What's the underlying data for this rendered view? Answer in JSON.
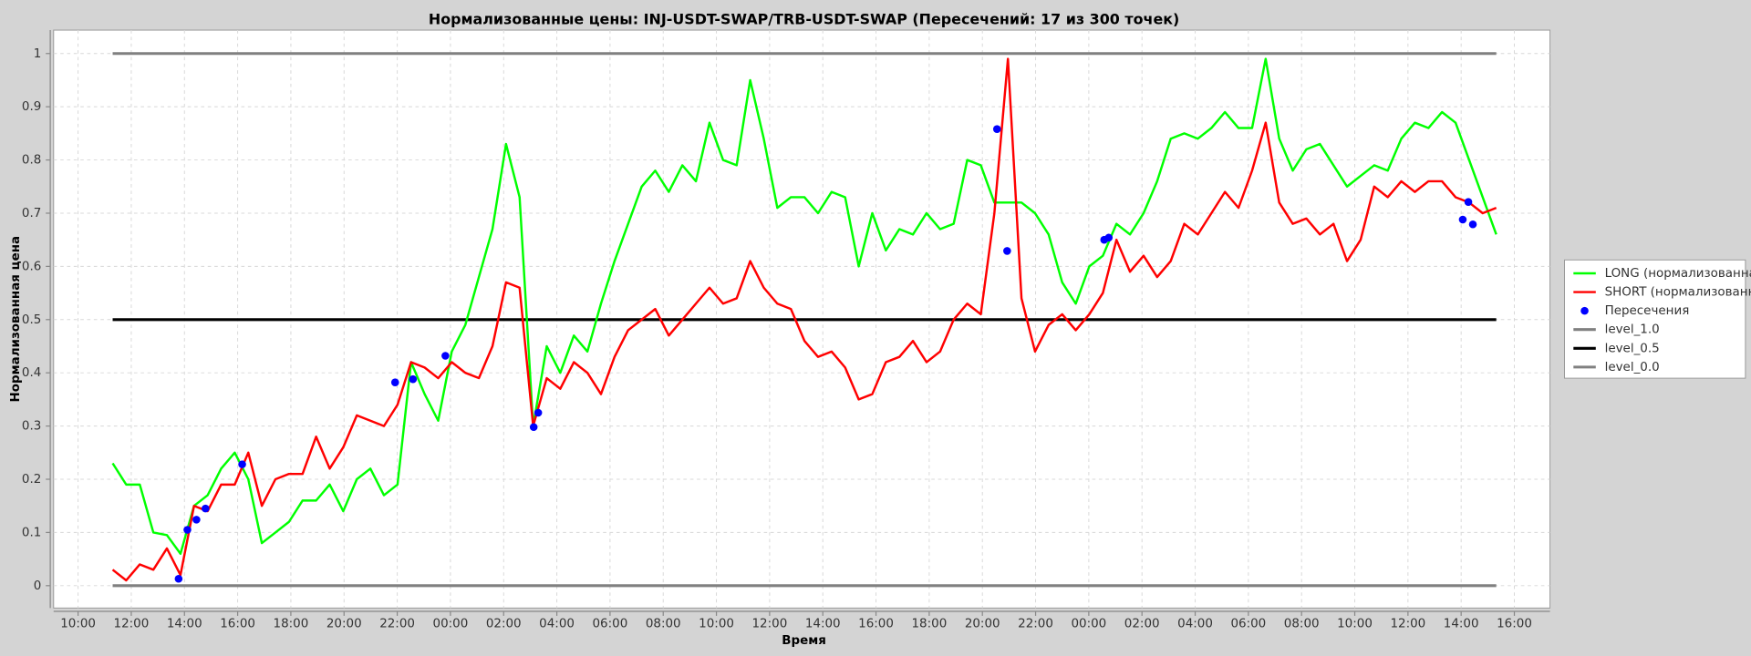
{
  "chart_data": {
    "type": "line",
    "title": "Нормализованные цены: INJ-USDT-SWAP/TRB-USDT-SWAP (Пересечений: 17 из 300 точек)",
    "xlabel": "Время",
    "ylabel": "Нормализованная цена",
    "grid": true,
    "legend": "right",
    "xlim": [
      9.08,
      65.34
    ],
    "ylim": [
      -0.042,
      1.044
    ],
    "xticks": [
      {
        "value": 10,
        "label": "10:00"
      },
      {
        "value": 12,
        "label": "12:00"
      },
      {
        "value": 14,
        "label": "14:00"
      },
      {
        "value": 16,
        "label": "16:00"
      },
      {
        "value": 18,
        "label": "18:00"
      },
      {
        "value": 20,
        "label": "20:00"
      },
      {
        "value": 22,
        "label": "22:00"
      },
      {
        "value": 24,
        "label": "00:00"
      },
      {
        "value": 26,
        "label": "02:00"
      },
      {
        "value": 28,
        "label": "04:00"
      },
      {
        "value": 30,
        "label": "06:00"
      },
      {
        "value": 32,
        "label": "08:00"
      },
      {
        "value": 34,
        "label": "10:00"
      },
      {
        "value": 36,
        "label": "12:00"
      },
      {
        "value": 38,
        "label": "14:00"
      },
      {
        "value": 40,
        "label": "16:00"
      },
      {
        "value": 42,
        "label": "18:00"
      },
      {
        "value": 44,
        "label": "20:00"
      },
      {
        "value": 46,
        "label": "22:00"
      },
      {
        "value": 48,
        "label": "00:00"
      },
      {
        "value": 50,
        "label": "02:00"
      },
      {
        "value": 52,
        "label": "04:00"
      },
      {
        "value": 54,
        "label": "06:00"
      },
      {
        "value": 56,
        "label": "08:00"
      },
      {
        "value": 58,
        "label": "10:00"
      },
      {
        "value": 60,
        "label": "12:00"
      },
      {
        "value": 62,
        "label": "14:00"
      },
      {
        "value": 64,
        "label": "16:00"
      }
    ],
    "yticks": [
      0,
      0.1,
      0.2,
      0.3,
      0.4,
      0.5,
      0.6,
      0.7,
      0.8,
      0.9,
      1
    ],
    "x": [
      11.3,
      11.81,
      12.32,
      12.83,
      13.34,
      13.85,
      14.36,
      14.87,
      15.38,
      15.89,
      16.4,
      16.91,
      17.42,
      17.93,
      18.44,
      18.95,
      19.46,
      19.97,
      20.48,
      20.99,
      21.5,
      22.01,
      22.52,
      23.03,
      23.54,
      24.05,
      24.56,
      25.07,
      25.58,
      26.09,
      26.6,
      27.11,
      27.62,
      28.13,
      28.64,
      29.15,
      29.66,
      30.17,
      30.68,
      31.19,
      31.7,
      32.21,
      32.72,
      33.23,
      33.74,
      34.25,
      34.76,
      35.27,
      35.78,
      36.29,
      36.8,
      37.31,
      37.82,
      38.33,
      38.84,
      39.35,
      39.86,
      40.37,
      40.88,
      41.39,
      41.9,
      42.41,
      42.92,
      43.43,
      43.94,
      44.45,
      44.96,
      45.47,
      45.98,
      46.49,
      47.0,
      47.51,
      48.02,
      48.53,
      49.04,
      49.55,
      50.06,
      50.57,
      51.08,
      51.59,
      52.1,
      52.61,
      53.12,
      53.63,
      54.14,
      54.65,
      55.16,
      55.67,
      56.18,
      56.69,
      57.2,
      57.71,
      58.22,
      58.73,
      59.24,
      59.75,
      60.26,
      60.77,
      61.28,
      61.79,
      62.3,
      62.81,
      63.32
    ],
    "series": [
      {
        "name": "LONG (нормализованная)",
        "color": "#00ff00",
        "values": [
          0.23,
          0.19,
          0.19,
          0.1,
          0.095,
          0.06,
          0.15,
          0.17,
          0.22,
          0.25,
          0.2,
          0.08,
          0.1,
          0.12,
          0.16,
          0.16,
          0.19,
          0.14,
          0.2,
          0.22,
          0.17,
          0.19,
          0.42,
          0.36,
          0.31,
          0.44,
          0.49,
          0.58,
          0.67,
          0.83,
          0.73,
          0.3,
          0.45,
          0.4,
          0.47,
          0.44,
          0.53,
          0.61,
          0.68,
          0.75,
          0.78,
          0.74,
          0.79,
          0.76,
          0.87,
          0.8,
          0.79,
          0.95,
          0.84,
          0.71,
          0.73,
          0.73,
          0.7,
          0.74,
          0.73,
          0.6,
          0.7,
          0.63,
          0.67,
          0.66,
          0.7,
          0.67,
          0.68,
          0.8,
          0.79,
          0.72,
          0.72,
          0.72,
          0.7,
          0.66,
          0.57,
          0.53,
          0.6,
          0.62,
          0.68,
          0.66,
          0.7,
          0.76,
          0.84,
          0.85,
          0.84,
          0.86,
          0.89,
          0.86,
          0.86,
          0.99,
          0.84,
          0.78,
          0.82,
          0.83,
          0.79,
          0.75,
          0.77,
          0.79,
          0.78,
          0.84,
          0.87,
          0.86,
          0.89,
          0.87,
          0.8,
          0.73,
          0.66
        ]
      },
      {
        "name": "SHORT (нормализованная)",
        "color": "#ff0000",
        "values": [
          0.03,
          0.01,
          0.04,
          0.03,
          0.07,
          0.02,
          0.15,
          0.14,
          0.19,
          0.19,
          0.25,
          0.15,
          0.2,
          0.21,
          0.21,
          0.28,
          0.22,
          0.26,
          0.32,
          0.31,
          0.3,
          0.34,
          0.42,
          0.41,
          0.39,
          0.42,
          0.4,
          0.39,
          0.45,
          0.57,
          0.56,
          0.3,
          0.39,
          0.37,
          0.42,
          0.4,
          0.36,
          0.43,
          0.48,
          0.5,
          0.52,
          0.47,
          0.5,
          0.53,
          0.56,
          0.53,
          0.54,
          0.61,
          0.56,
          0.53,
          0.52,
          0.46,
          0.43,
          0.44,
          0.41,
          0.35,
          0.36,
          0.42,
          0.43,
          0.46,
          0.42,
          0.44,
          0.5,
          0.53,
          0.51,
          0.7,
          0.99,
          0.54,
          0.44,
          0.49,
          0.51,
          0.48,
          0.51,
          0.55,
          0.65,
          0.59,
          0.62,
          0.58,
          0.61,
          0.68,
          0.66,
          0.7,
          0.74,
          0.71,
          0.78,
          0.87,
          0.72,
          0.68,
          0.69,
          0.66,
          0.68,
          0.61,
          0.65,
          0.75,
          0.73,
          0.76,
          0.74,
          0.76,
          0.76,
          0.73,
          0.72,
          0.7,
          0.71
        ]
      }
    ],
    "crossings": {
      "name": "Пересечения",
      "color": "#0000ff",
      "x": [
        13.78,
        14.11,
        14.45,
        14.79,
        16.17,
        21.92,
        22.59,
        23.81,
        27.13,
        27.3,
        44.55,
        44.93,
        48.58,
        48.75,
        62.06,
        62.27,
        62.44
      ],
      "values": [
        0.013,
        0.105,
        0.124,
        0.145,
        0.228,
        0.382,
        0.388,
        0.432,
        0.298,
        0.325,
        0.858,
        0.629,
        0.65,
        0.654,
        0.688,
        0.721,
        0.679
      ]
    },
    "levels": [
      {
        "name": "level_1.0",
        "color": "#808080",
        "value": 1
      },
      {
        "name": "level_0.5",
        "color": "#000000",
        "value": 0.5
      },
      {
        "name": "level_0.0",
        "color": "#808080",
        "value": 0
      }
    ]
  }
}
